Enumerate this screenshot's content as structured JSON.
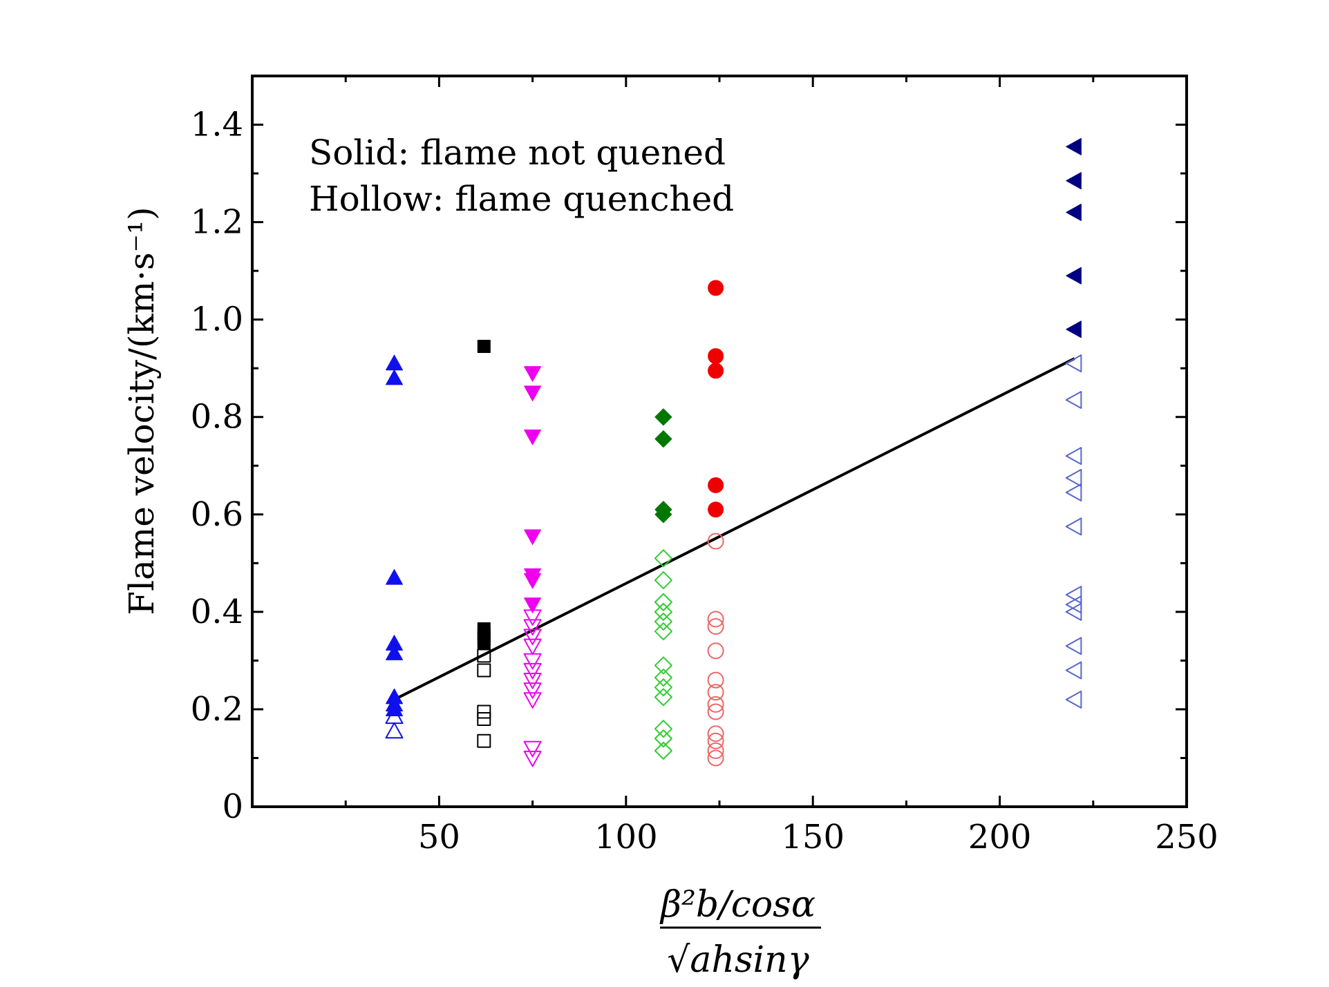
{
  "chart_data": {
    "type": "scatter",
    "title": "",
    "xlabel_numerator": "β²b/cosα",
    "xlabel_denominator": "√ahsinγ",
    "ylabel": "Flame velocity/(km·s⁻¹)",
    "xlim": [
      0,
      250
    ],
    "ylim": [
      0,
      1.5
    ],
    "x_ticks": [
      50,
      100,
      150,
      200,
      250
    ],
    "y_ticks": [
      0,
      0.2,
      0.4,
      0.6,
      0.8,
      1.0,
      1.2,
      1.4
    ],
    "y_tick_labels": [
      "0",
      "0.2",
      "0.4",
      "0.6",
      "0.8",
      "1.0",
      "1.2",
      "1.4"
    ],
    "annotations": [
      "Solid: flame not quened",
      "Hollow: flame quenched"
    ],
    "grid": false,
    "legend": "none",
    "series": [
      {
        "marker": "triangle-up",
        "color": "#1010ee",
        "x": 38,
        "solid": [
          0.91,
          0.88,
          0.47,
          0.335,
          0.315,
          0.225,
          0.21,
          0.2
        ],
        "hollow": [
          0.185,
          0.155
        ]
      },
      {
        "marker": "square",
        "color": "#000000",
        "x": 62,
        "solid": [
          0.945,
          0.365,
          0.355,
          0.345,
          0.335
        ],
        "hollow": [
          0.31,
          0.28,
          0.195,
          0.18,
          0.135
        ]
      },
      {
        "marker": "triangle-down",
        "color": "#ee00ee",
        "x": 75,
        "solid": [
          0.89,
          0.85,
          0.76,
          0.555,
          0.475,
          0.465,
          0.415
        ],
        "hollow": [
          0.39,
          0.37,
          0.35,
          0.33,
          0.3,
          0.28,
          0.26,
          0.24,
          0.22,
          0.12,
          0.1
        ]
      },
      {
        "marker": "diamond",
        "color": "#007700",
        "hollow_color": "#33cc33",
        "x": 110,
        "solid": [
          0.8,
          0.755,
          0.61,
          0.6
        ],
        "hollow": [
          0.51,
          0.465,
          0.42,
          0.4,
          0.38,
          0.36,
          0.29,
          0.265,
          0.245,
          0.225,
          0.16,
          0.14,
          0.115
        ]
      },
      {
        "marker": "circle",
        "color": "#ee0000",
        "hollow_color": "#ee6666",
        "x": 124,
        "solid": [
          1.065,
          0.925,
          0.895,
          0.66,
          0.61
        ],
        "hollow": [
          0.545,
          0.385,
          0.37,
          0.32,
          0.26,
          0.235,
          0.21,
          0.195,
          0.15,
          0.135,
          0.115,
          0.1
        ]
      },
      {
        "marker": "triangle-left",
        "color": "#000080",
        "hollow_color": "#5566cc",
        "x": 220,
        "solid": [
          1.355,
          1.285,
          1.22,
          1.09,
          0.98
        ],
        "hollow": [
          0.91,
          0.835,
          0.72,
          0.675,
          0.645,
          0.575,
          0.435,
          0.415,
          0.4,
          0.33,
          0.28,
          0.22
        ]
      }
    ],
    "fit_line": {
      "x": [
        38,
        220
      ],
      "y": [
        0.22,
        0.92
      ],
      "color": "#000000"
    }
  }
}
